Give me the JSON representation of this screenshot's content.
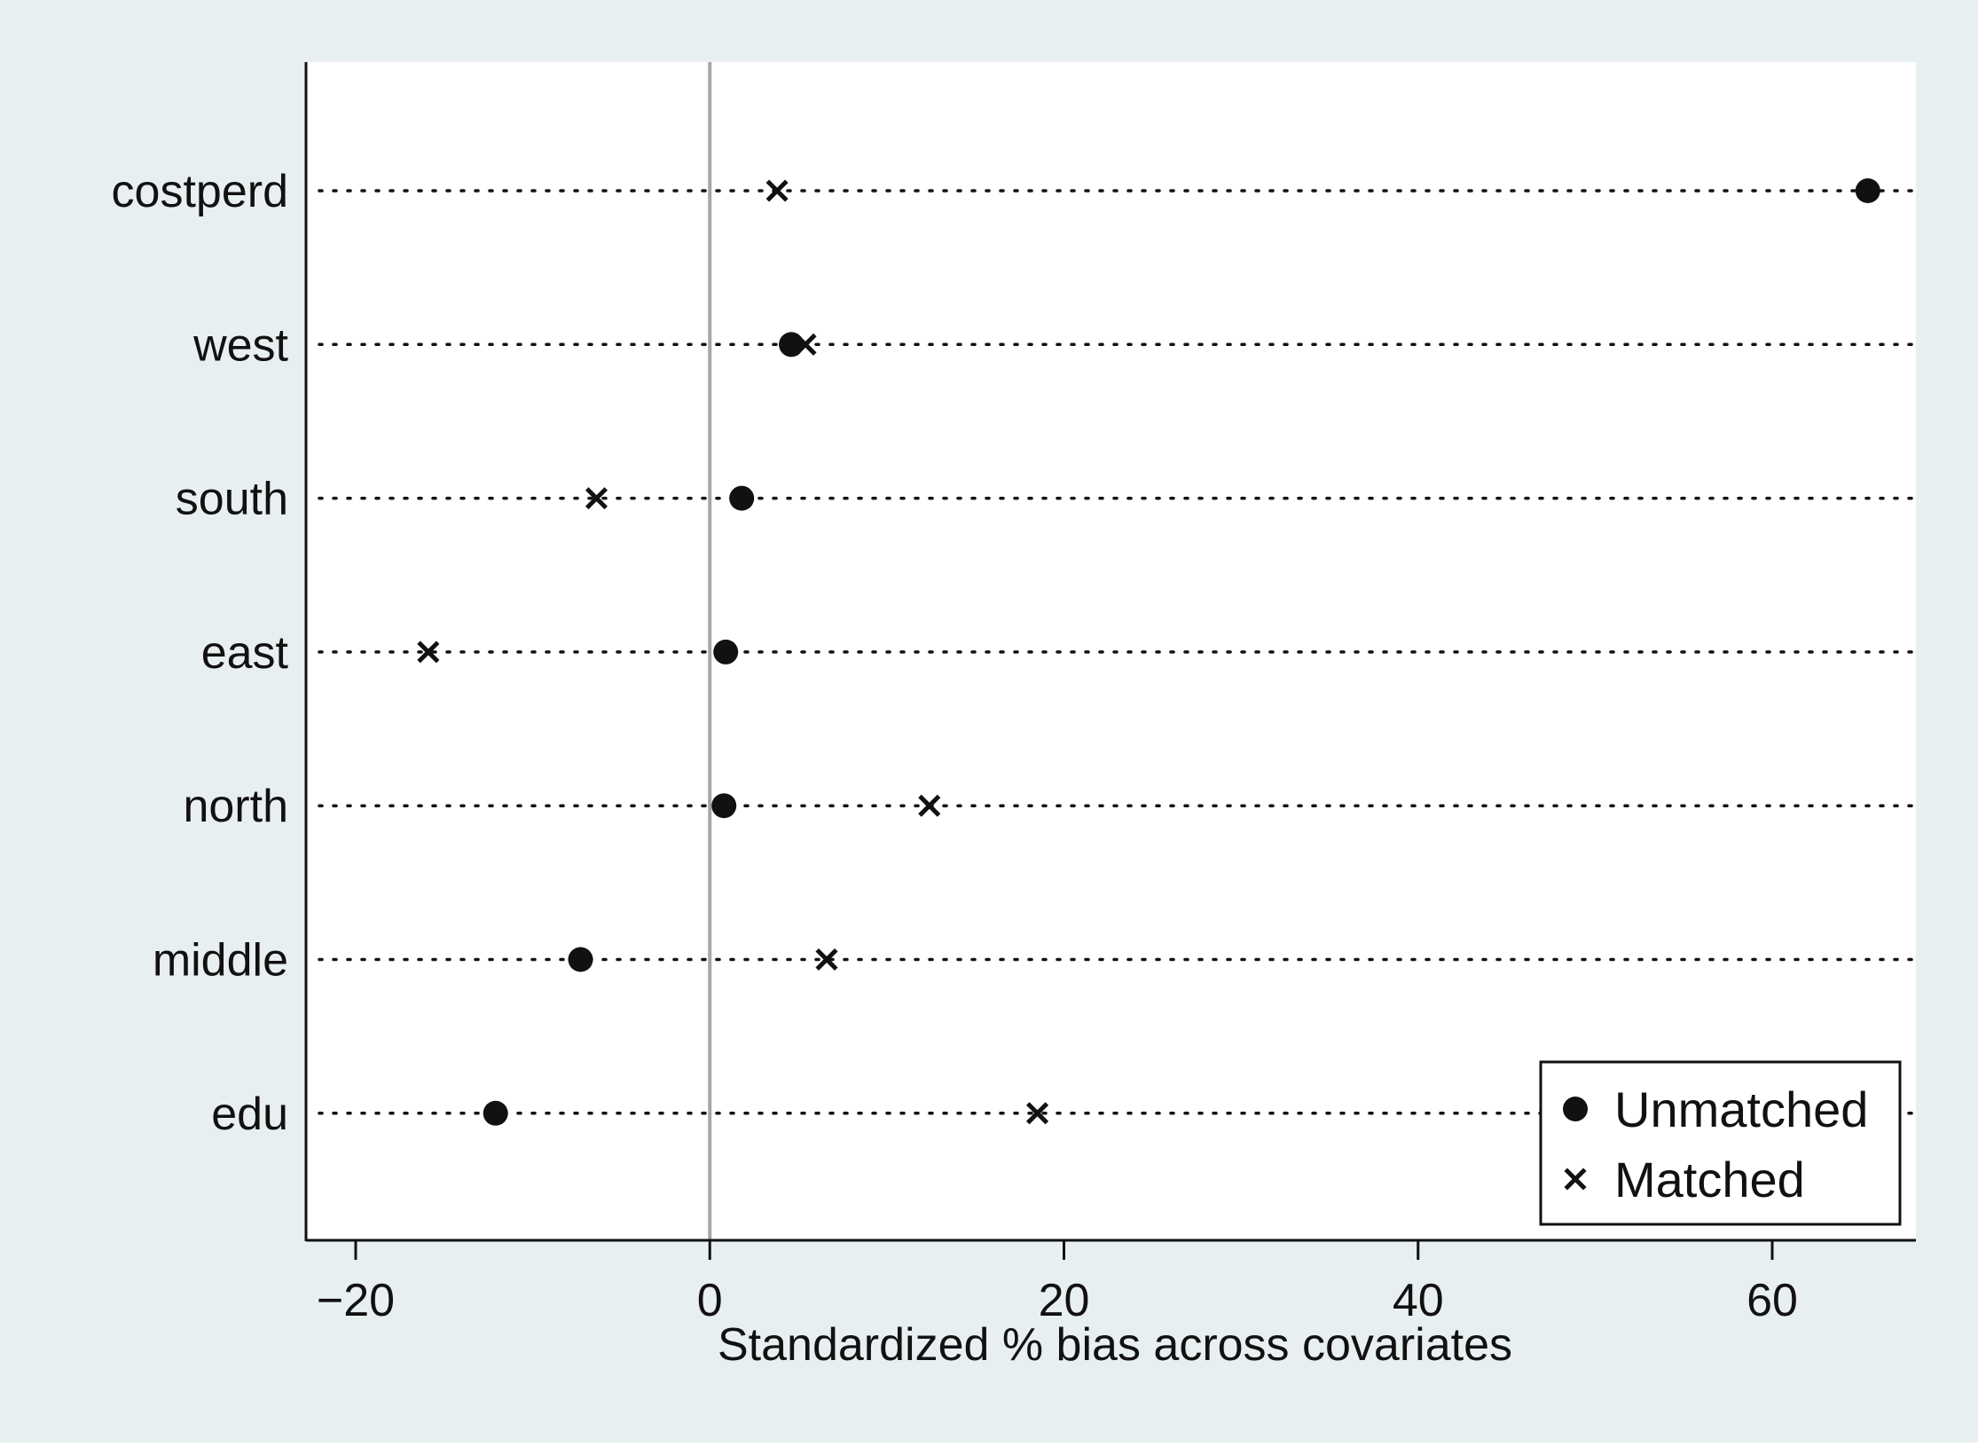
{
  "chart_data": {
    "type": "scatter",
    "xlabel": "Standardized % bias across covariates",
    "ylabel": "",
    "xlim": [
      -23.5,
      68
    ],
    "xticks": [
      -20,
      0,
      20,
      40,
      60
    ],
    "xtick_labels": [
      "−20",
      "0",
      "20",
      "40",
      "60"
    ],
    "categories": [
      "costperd",
      "west",
      "south",
      "east",
      "north",
      "middle",
      "edu"
    ],
    "series": [
      {
        "name": "Unmatched",
        "marker": "dot",
        "values": [
          65.4,
          4.6,
          1.8,
          0.9,
          0.8,
          -7.3,
          -12.1
        ]
      },
      {
        "name": "Matched",
        "marker": "cross",
        "values": [
          3.8,
          5.4,
          -6.4,
          -15.9,
          12.4,
          6.6,
          18.5
        ]
      }
    ],
    "reference_line_x": 0,
    "grid": "dotted horizontal lines at each category",
    "legend_position": "bottom-right",
    "colors": {
      "outer_background": "#e8eff1",
      "plot_background": "#ffffff",
      "marker": "#111111",
      "reference_line": "#a6a6a6"
    }
  }
}
